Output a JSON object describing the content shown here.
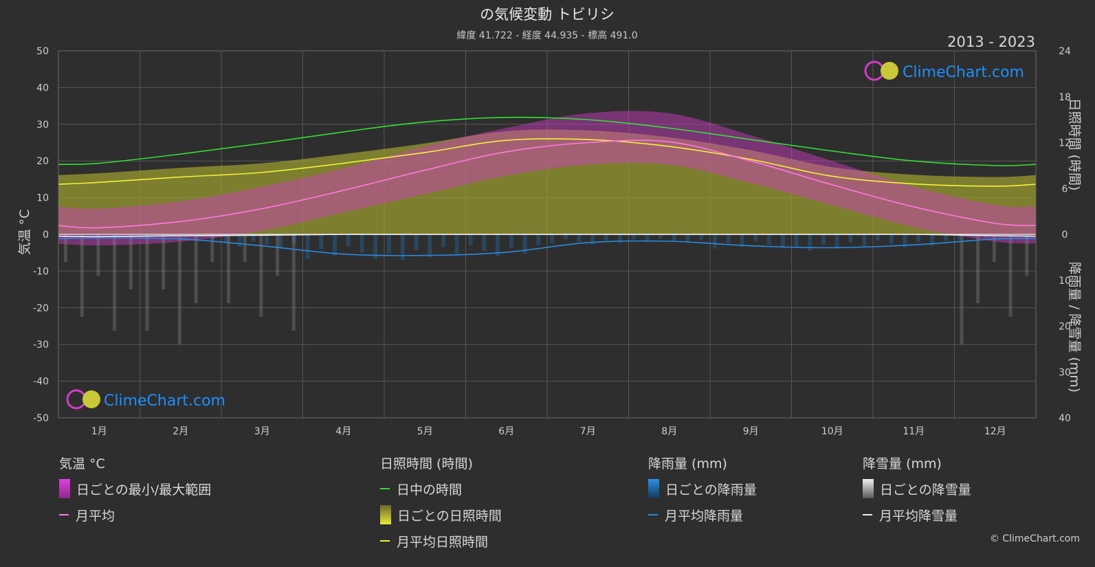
{
  "header": {
    "title": "の気候変動 トビリシ",
    "subtitle": "緯度 41.722 - 経度 44.935 - 標高 491.0",
    "period": "2013 - 2023"
  },
  "brand": {
    "name": "ClimeChart.com",
    "copyright": "© ClimeChart.com"
  },
  "colors": {
    "background": "#2e2e2e",
    "daylight": "#33e033",
    "sunshine_avg": "#f2f23a",
    "sunshine_bar": "#9a9a30",
    "temp_range": "#d23cc8",
    "temp_avg": "#ff7adf",
    "rain_bar": "#1f74b8",
    "rain_avg": "#2a8ae0",
    "snow_bar": "#8a8a8a",
    "snow_avg": "#f0f0f0",
    "brand_text": "#1e90ff"
  },
  "chart_data": {
    "type": "line",
    "categories": [
      "1月",
      "2月",
      "3月",
      "4月",
      "5月",
      "6月",
      "7月",
      "8月",
      "9月",
      "10月",
      "11月",
      "12月"
    ],
    "axes": {
      "left": {
        "label": "気温 °C",
        "min": -50,
        "max": 50,
        "ticks": [
          50,
          40,
          30,
          20,
          10,
          0,
          -10,
          -20,
          -30,
          -40,
          -50
        ]
      },
      "right_top": {
        "label": "日照時間 (時間)",
        "min": 0,
        "max": 24,
        "ticks": [
          24,
          18,
          12,
          6,
          0
        ]
      },
      "right_bottom": {
        "label": "降雨量 / 降雪量 (mm)",
        "min": 0,
        "max": 40,
        "ticks": [
          10,
          20,
          30,
          40
        ]
      }
    },
    "grid": true,
    "series": [
      {
        "name": "日中の時間",
        "axis": "right_top",
        "values": [
          9.3,
          10.5,
          11.9,
          13.4,
          14.7,
          15.3,
          15.0,
          13.9,
          12.4,
          10.9,
          9.6,
          9.0
        ]
      },
      {
        "name": "月平均日照時間",
        "axis": "right_top",
        "values": [
          6.8,
          7.5,
          8.1,
          9.3,
          10.7,
          12.3,
          12.4,
          11.5,
          9.8,
          7.6,
          6.6,
          6.3
        ]
      },
      {
        "name": "月平均",
        "axis": "left",
        "values": [
          1.8,
          3.5,
          7.0,
          12.0,
          17.5,
          22.5,
          25.0,
          25.2,
          20.0,
          13.5,
          7.5,
          3.0
        ]
      },
      {
        "name": "月平均降雨量",
        "axis": "right_bottom",
        "values": [
          0.8,
          1.0,
          2.5,
          4.3,
          4.6,
          3.9,
          1.8,
          1.5,
          2.5,
          2.9,
          2.3,
          1.0
        ]
      },
      {
        "name": "月平均降雪量",
        "axis": "right_bottom",
        "values": [
          0.5,
          0.3,
          0.2,
          0.0,
          0.0,
          0.0,
          0.0,
          0.0,
          0.0,
          0.0,
          0.0,
          0.3
        ]
      }
    ],
    "temp_range_band": {
      "min": [
        -3,
        -2,
        1,
        6,
        11,
        16,
        19,
        19,
        14,
        8,
        2,
        -2
      ],
      "max": [
        7,
        9,
        13,
        18,
        24,
        29,
        33,
        33,
        27,
        20,
        13,
        8
      ]
    },
    "daily_sunshine_band": [
      6.8,
      7.5,
      8.1,
      9.3,
      10.7,
      12.3,
      12.4,
      11.5,
      9.8,
      7.6,
      6.6,
      6.3
    ]
  },
  "legend": {
    "temperature": {
      "heading": "気温 °C",
      "items": [
        "日ごとの最小/最大範囲",
        "月平均"
      ]
    },
    "sunshine": {
      "heading": "日照時間 (時間)",
      "items": [
        "日中の時間",
        "日ごとの日照時間",
        "月平均日照時間"
      ]
    },
    "rain": {
      "heading": "降雨量 (mm)",
      "items": [
        "日ごとの降雨量",
        "月平均降雨量"
      ]
    },
    "snow": {
      "heading": "降雪量 (mm)",
      "items": [
        "日ごとの降雪量",
        "月平均降雪量"
      ]
    }
  }
}
